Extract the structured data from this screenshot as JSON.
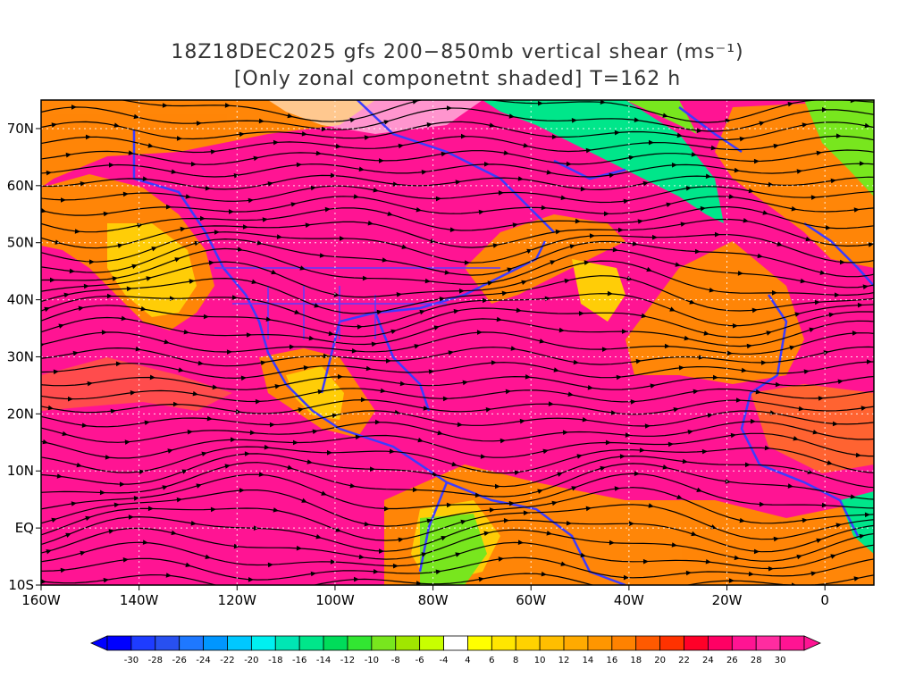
{
  "title": {
    "line1": "18Z18DEC2025 gfs 200−850mb vertical shear (ms⁻¹)",
    "line2": "[Only zonal componetnt shaded] T=162 h"
  },
  "map": {
    "lon_range": [
      -160,
      10
    ],
    "lat_range": [
      -10,
      75
    ],
    "lon_ticks": [
      {
        "lon": -160,
        "label": "160W"
      },
      {
        "lon": -140,
        "label": "140W"
      },
      {
        "lon": -120,
        "label": "120W"
      },
      {
        "lon": -100,
        "label": "100W"
      },
      {
        "lon": -80,
        "label": "80W"
      },
      {
        "lon": -60,
        "label": "60W"
      },
      {
        "lon": -40,
        "label": "40W"
      },
      {
        "lon": -20,
        "label": "20W"
      },
      {
        "lon": 0,
        "label": "0"
      }
    ],
    "lat_ticks": [
      {
        "lat": -10,
        "label": "10S"
      },
      {
        "lat": 0,
        "label": "EQ"
      },
      {
        "lat": 10,
        "label": "10N"
      },
      {
        "lat": 20,
        "label": "20N"
      },
      {
        "lat": 30,
        "label": "30N"
      },
      {
        "lat": 40,
        "label": "40N"
      },
      {
        "lat": 50,
        "label": "50N"
      },
      {
        "lat": 60,
        "label": "60N"
      },
      {
        "lat": 70,
        "label": "70N"
      }
    ],
    "shading_colors": {
      "strong_positive": "#ff1493",
      "positive": "#ff8c00",
      "weak_positive": "#ffd700",
      "negative": "#00e68a",
      "coast_color": "#3c3cff",
      "streamline_color": "#000000"
    }
  },
  "colorbar": {
    "labels": [
      "-30",
      "-28",
      "-26",
      "-24",
      "-22",
      "-20",
      "-18",
      "-16",
      "-14",
      "-12",
      "-10",
      "-8",
      "-6",
      "-4",
      "4",
      "6",
      "8",
      "10",
      "12",
      "14",
      "16",
      "18",
      "20",
      "22",
      "24",
      "26",
      "28",
      "30"
    ],
    "colors": [
      "#0000ff",
      "#1e3cff",
      "#2850f0",
      "#1e78ff",
      "#0096ff",
      "#00c8ff",
      "#00f0f0",
      "#00e6b4",
      "#00e68a",
      "#00dc5a",
      "#32e632",
      "#78e61e",
      "#a0e600",
      "#c8ff00",
      "#ffffff",
      "#ffff00",
      "#ffe600",
      "#ffd200",
      "#ffbe00",
      "#ffaa00",
      "#ff9600",
      "#ff8200",
      "#ff5a00",
      "#ff3200",
      "#ff0028",
      "#ff0064",
      "#ff1493",
      "#ff2ca0",
      "#ff1493"
    ]
  }
}
